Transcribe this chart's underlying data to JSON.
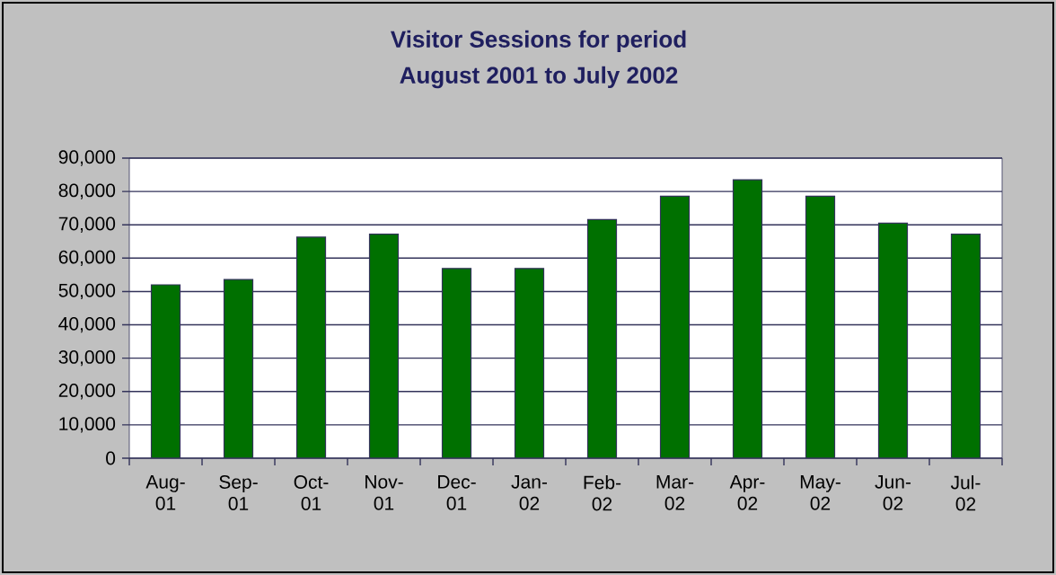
{
  "chart_data": {
    "type": "bar",
    "title": "Visitor Sessions for period",
    "subtitle": "August 2001 to July 2002",
    "categories": [
      "Aug-01",
      "Sep-01",
      "Oct-01",
      "Nov-01",
      "Dec-01",
      "Jan-02",
      "Feb-02",
      "Mar-02",
      "Apr-02",
      "May-02",
      "Jun-02",
      "Jul-02"
    ],
    "values": [
      52000,
      53600,
      66300,
      67200,
      56900,
      56900,
      71600,
      78600,
      83500,
      78600,
      70500,
      67200
    ],
    "color": "#007000",
    "ylim": [
      0,
      90000
    ],
    "yticks": [
      {
        "value": 0,
        "label": "0"
      },
      {
        "value": 10000,
        "label": "10,000"
      },
      {
        "value": 20000,
        "label": "20,000"
      },
      {
        "value": 30000,
        "label": "30,000"
      },
      {
        "value": 40000,
        "label": "40,000"
      },
      {
        "value": 50000,
        "label": "50,000"
      },
      {
        "value": 60000,
        "label": "60,000"
      },
      {
        "value": 70000,
        "label": "70,000"
      },
      {
        "value": 80000,
        "label": "80,000"
      },
      {
        "value": 90000,
        "label": "90,000"
      }
    ],
    "grid": "y"
  }
}
